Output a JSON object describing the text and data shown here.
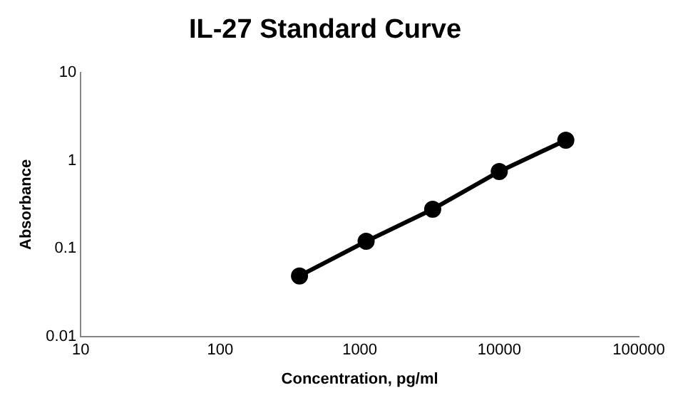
{
  "chart_data": {
    "type": "line",
    "title": "IL-27 Standard Curve",
    "xlabel": "Concentration, pg/ml",
    "ylabel": "Absorbance",
    "log": "xy",
    "grid": false,
    "legend": false,
    "marker": "circle",
    "line_style": "solid",
    "xlim": [
      10,
      100000
    ],
    "xticks": [
      10,
      100,
      1000,
      10000,
      100000
    ],
    "ylim": [
      0.01,
      10
    ],
    "yticks": [
      0.01,
      0.1,
      1,
      10
    ],
    "x": [
      370,
      1111,
      3333,
      10000,
      30000
    ],
    "series": [
      {
        "color": "#000000",
        "values": [
          0.049,
          0.121,
          0.28,
          0.75,
          1.7
        ]
      }
    ]
  }
}
